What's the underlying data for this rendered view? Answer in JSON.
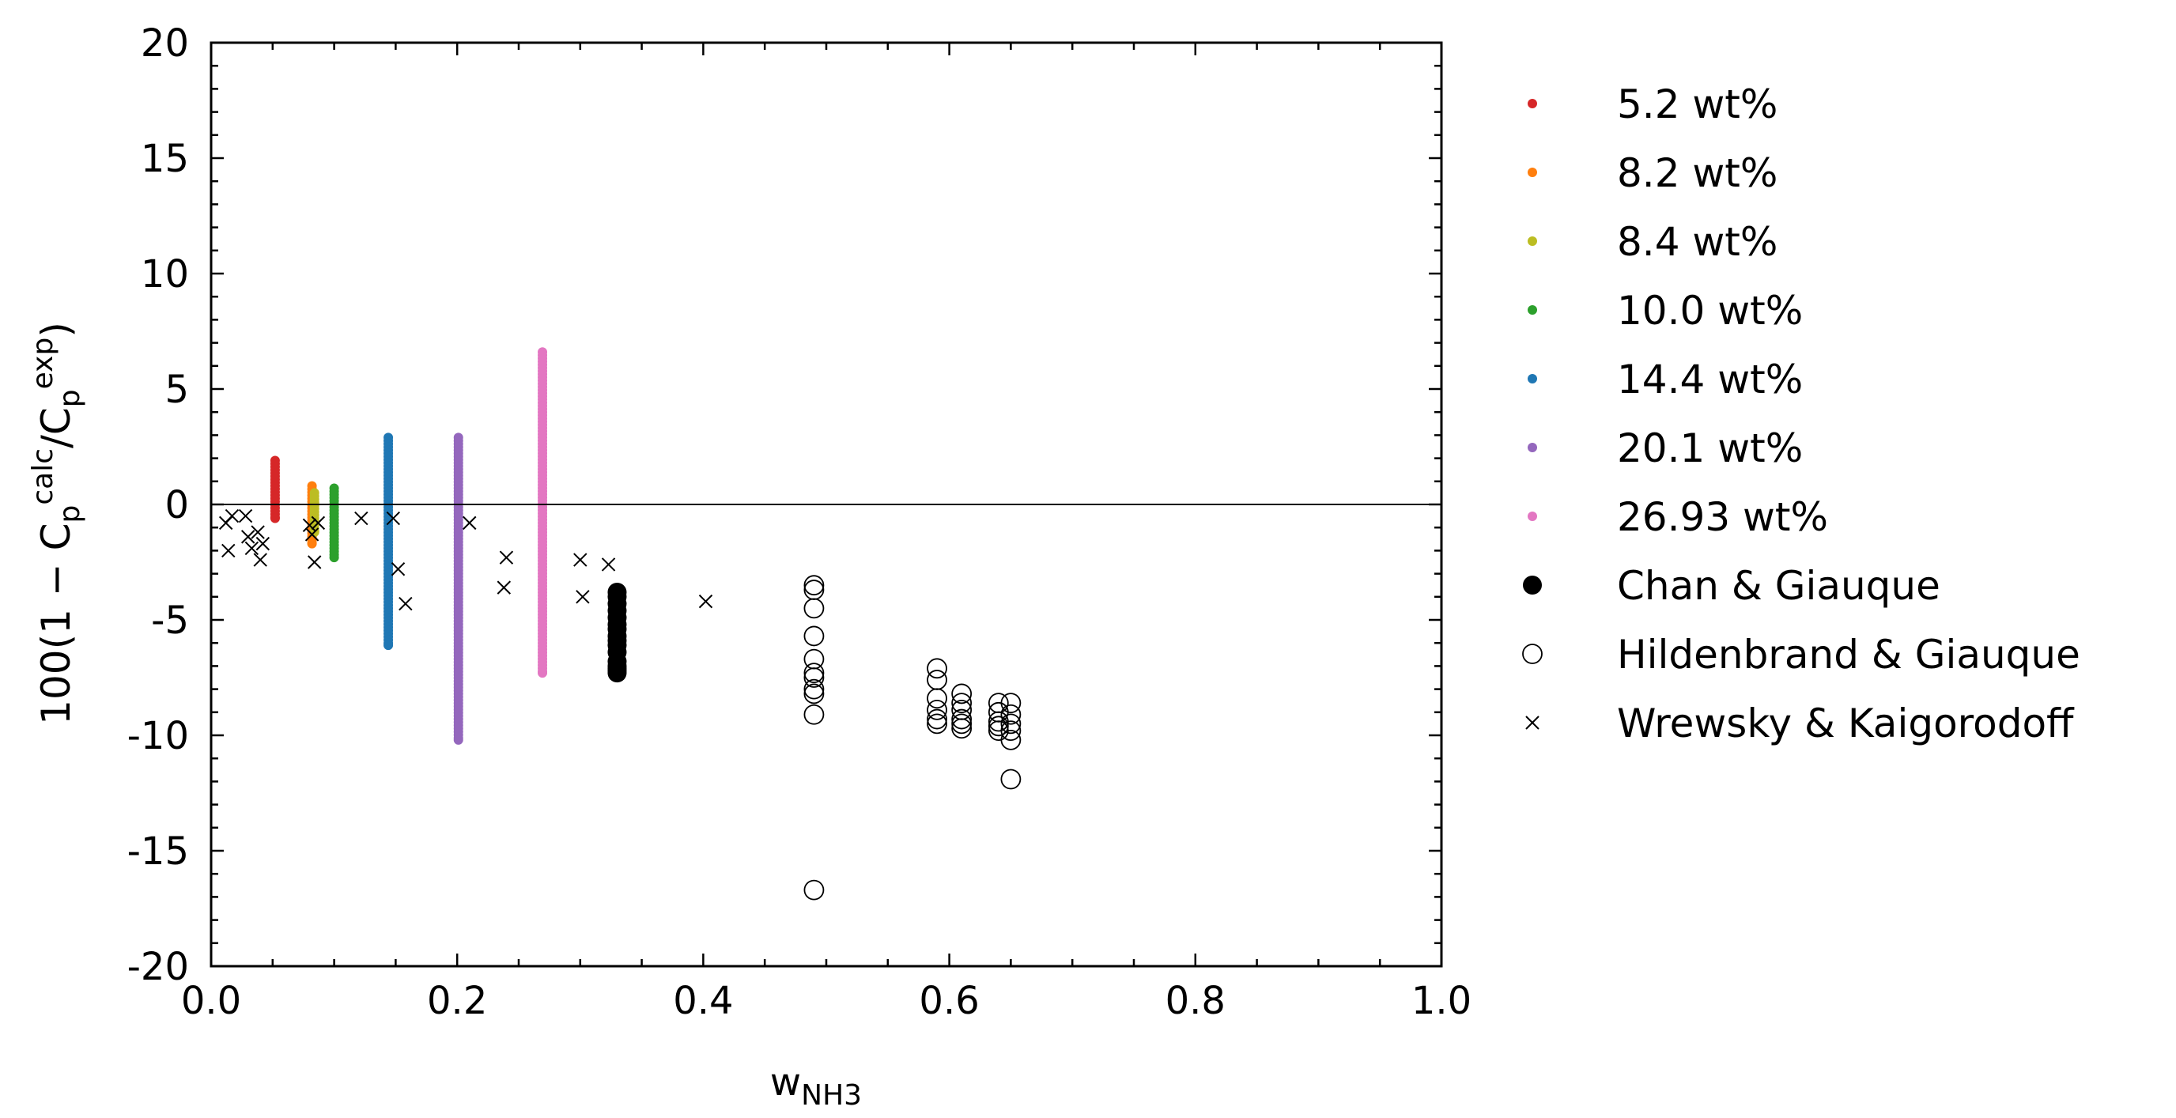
{
  "chart_data": {
    "type": "scatter",
    "title": "",
    "xlabel": {
      "main": "w",
      "sub": "NH3"
    },
    "ylabel": {
      "prefix": "100(1 − C",
      "p1": "p",
      "calc": "calc",
      "mid": "/C",
      "p2": "p",
      "exp": "exp",
      "suffix": ")"
    },
    "xlim": [
      0.0,
      1.0
    ],
    "ylim": [
      -20,
      20
    ],
    "x_ticks": [
      "0.0",
      "0.2",
      "0.4",
      "0.6",
      "0.8",
      "1.0"
    ],
    "y_ticks": [
      "20",
      "15",
      "10",
      "5",
      "0",
      "-5",
      "-10",
      "-15",
      "-20"
    ],
    "grid": false,
    "legend_position": "right-outside",
    "reference_line_y": 0,
    "series": [
      {
        "name": "5.2 wt%",
        "color": "#d62728",
        "marker": "dot",
        "x": 0.052,
        "y_range": [
          -0.6,
          1.9
        ]
      },
      {
        "name": "8.2 wt%",
        "color": "#ff7f0e",
        "marker": "dot",
        "x": 0.082,
        "y_range": [
          -1.7,
          0.8
        ]
      },
      {
        "name": "8.4 wt%",
        "color": "#bcbd22",
        "marker": "dot",
        "x": 0.084,
        "y_range": [
          -1.2,
          0.5
        ]
      },
      {
        "name": "10.0 wt%",
        "color": "#2ca02c",
        "marker": "dot",
        "x": 0.1,
        "y_range": [
          -2.3,
          0.7
        ]
      },
      {
        "name": "14.4 wt%",
        "color": "#1f77b4",
        "marker": "dot",
        "x": 0.144,
        "y_range": [
          -6.1,
          2.9
        ]
      },
      {
        "name": "20.1 wt%",
        "color": "#9467bd",
        "marker": "dot",
        "x": 0.201,
        "y_range": [
          -10.2,
          2.9
        ]
      },
      {
        "name": "26.93 wt%",
        "color": "#e377c2",
        "marker": "dot",
        "x": 0.2693,
        "y_range": [
          -7.3,
          6.6
        ]
      },
      {
        "name": "Chan & Giauque",
        "color": "#000000",
        "marker": "filled-circle",
        "x": [
          0.33,
          0.33,
          0.33,
          0.33,
          0.33,
          0.33,
          0.33,
          0.33,
          0.33,
          0.33,
          0.33,
          0.33,
          0.33,
          0.33,
          0.33,
          0.33
        ],
        "y": [
          -3.8,
          -4.0,
          -4.3,
          -4.6,
          -4.9,
          -5.2,
          -5.4,
          -5.7,
          -5.9,
          -6.1,
          -6.4,
          -6.8,
          -7.0,
          -7.1,
          -7.2,
          -7.3
        ]
      },
      {
        "name": "Hildenbrand & Giauque",
        "color": "#000000",
        "marker": "open-circle",
        "x": [
          0.49,
          0.49,
          0.49,
          0.49,
          0.49,
          0.49,
          0.49,
          0.49,
          0.49,
          0.49,
          0.49,
          0.59,
          0.59,
          0.59,
          0.59,
          0.59,
          0.59,
          0.61,
          0.61,
          0.61,
          0.61,
          0.61,
          0.61,
          0.64,
          0.64,
          0.64,
          0.64,
          0.64,
          0.65,
          0.65,
          0.65,
          0.65,
          0.65,
          0.65
        ],
        "y": [
          -3.5,
          -3.7,
          -4.5,
          -5.7,
          -6.7,
          -7.3,
          -7.5,
          -8.0,
          -8.2,
          -9.1,
          -16.7,
          -7.1,
          -7.6,
          -8.4,
          -8.9,
          -9.3,
          -9.5,
          -8.2,
          -8.6,
          -8.9,
          -9.3,
          -9.5,
          -9.7,
          -8.6,
          -9.0,
          -9.4,
          -9.6,
          -9.8,
          -8.6,
          -9.1,
          -9.5,
          -9.8,
          -10.2,
          -11.9
        ]
      },
      {
        "name": "Wrewsky & Kaigorodoff",
        "color": "#000000",
        "marker": "x",
        "x": [
          0.012,
          0.014,
          0.017,
          0.028,
          0.03,
          0.033,
          0.038,
          0.04,
          0.042,
          0.08,
          0.082,
          0.084,
          0.087,
          0.122,
          0.148,
          0.152,
          0.158,
          0.21,
          0.238,
          0.24,
          0.3,
          0.302,
          0.323,
          0.402
        ],
        "y": [
          -0.8,
          -2.0,
          -0.5,
          -0.5,
          -1.4,
          -1.9,
          -1.2,
          -2.4,
          -1.7,
          -0.9,
          -1.3,
          -2.5,
          -0.8,
          -0.6,
          -0.6,
          -2.8,
          -4.3,
          -0.8,
          -3.6,
          -2.3,
          -2.4,
          -4.0,
          -2.6,
          -4.2
        ]
      }
    ]
  }
}
